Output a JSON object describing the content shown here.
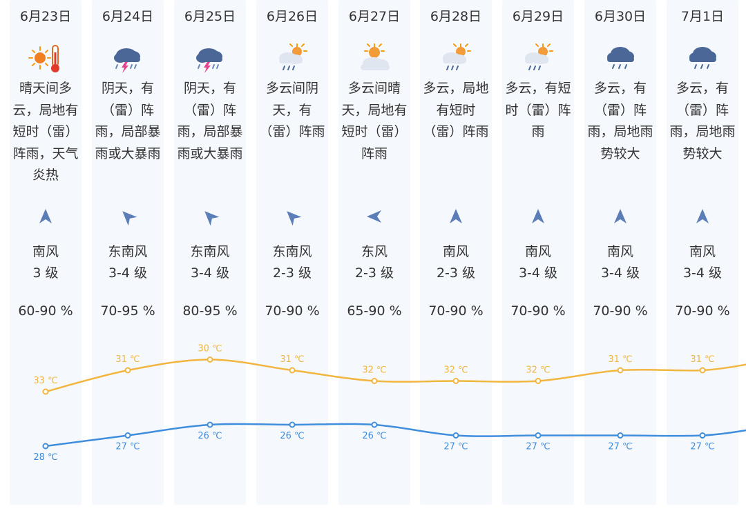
{
  "colors": {
    "high_line": "#f2b640",
    "low_line": "#3f8ddd",
    "wind_arrow": "#5b7db8",
    "column_bg": "#f5f8fc"
  },
  "days": [
    {
      "date": "6月23日",
      "icon": "sunny-hot-icon",
      "desc": [
        "晴天间多",
        "云，局地有",
        "短时（雷）",
        "阵雨，天气",
        "炎热"
      ],
      "wind_arrow": "wind-arrow-south-icon",
      "wind_dir": "南风",
      "wind_level": "3 级",
      "humidity": "60-90 %",
      "high": "33 ℃",
      "low": "28 ℃"
    },
    {
      "date": "6月24日",
      "icon": "thunderstorm-icon",
      "desc": [
        "阴天，有",
        "（雷）阵",
        "雨，局部暴",
        "雨或大暴雨"
      ],
      "wind_arrow": "wind-arrow-southeast-icon",
      "wind_dir": "东南风",
      "wind_level": "3-4 级",
      "humidity": "70-95 %",
      "high": "31 ℃",
      "low": "27 ℃"
    },
    {
      "date": "6月25日",
      "icon": "thunderstorm-icon",
      "desc": [
        "阴天，有",
        "（雷）阵",
        "雨，局部暴",
        "雨或大暴雨"
      ],
      "wind_arrow": "wind-arrow-southeast-icon",
      "wind_dir": "东南风",
      "wind_level": "3-4 级",
      "humidity": "80-95 %",
      "high": "30 ℃",
      "low": "26 ℃"
    },
    {
      "date": "6月26日",
      "icon": "partly-cloudy-rain-icon",
      "desc": [
        "多云间阴",
        "天，有",
        "（雷）阵雨"
      ],
      "wind_arrow": "wind-arrow-southeast-icon",
      "wind_dir": "东南风",
      "wind_level": "2-3 级",
      "humidity": "70-90 %",
      "high": "31 ℃",
      "low": "26 ℃"
    },
    {
      "date": "6月27日",
      "icon": "partly-cloudy-icon",
      "desc": [
        "多云间晴",
        "天，局地有",
        "短时（雷）",
        "阵雨"
      ],
      "wind_arrow": "wind-arrow-east-icon",
      "wind_dir": "东风",
      "wind_level": "2-3 级",
      "humidity": "65-90 %",
      "high": "32 ℃",
      "low": "26 ℃"
    },
    {
      "date": "6月28日",
      "icon": "partly-cloudy-rain-icon",
      "desc": [
        "多云，局地",
        "有短时",
        "（雷）阵雨"
      ],
      "wind_arrow": "wind-arrow-south-icon",
      "wind_dir": "南风",
      "wind_level": "2-3 级",
      "humidity": "70-90 %",
      "high": "32 ℃",
      "low": "27 ℃"
    },
    {
      "date": "6月29日",
      "icon": "partly-cloudy-rain-icon",
      "desc": [
        "多云，有短",
        "时（雷）阵",
        "雨"
      ],
      "wind_arrow": "wind-arrow-south-icon",
      "wind_dir": "南风",
      "wind_level": "3-4 级",
      "humidity": "70-90 %",
      "high": "32 ℃",
      "low": "27 ℃"
    },
    {
      "date": "6月30日",
      "icon": "cloudy-rain-icon",
      "desc": [
        "多云，有",
        "（雷）阵",
        "雨，局地雨",
        "势较大"
      ],
      "wind_arrow": "wind-arrow-south-icon",
      "wind_dir": "南风",
      "wind_level": "3-4 级",
      "humidity": "70-90 %",
      "high": "31 ℃",
      "low": "27 ℃"
    },
    {
      "date": "7月1日",
      "icon": "cloudy-rain-icon",
      "desc": [
        "多云，有",
        "（雷）阵",
        "雨，局地雨",
        "势较大"
      ],
      "wind_arrow": "wind-arrow-south-icon",
      "wind_dir": "南风",
      "wind_level": "3-4 级",
      "humidity": "70-90 %",
      "high": "31 ℃",
      "low": "27 ℃"
    }
  ],
  "chart_data": {
    "type": "line",
    "categories": [
      "6月23日",
      "6月24日",
      "6月25日",
      "6月26日",
      "6月27日",
      "6月28日",
      "6月29日",
      "6月30日",
      "7月1日"
    ],
    "series": [
      {
        "values": [
          33,
          31,
          30,
          31,
          32,
          32,
          32,
          31,
          31
        ]
      },
      {
        "values": [
          28,
          27,
          26,
          26,
          26,
          27,
          27,
          27,
          27
        ]
      }
    ],
    "unit": "℃",
    "title": "",
    "xlabel": "",
    "ylabel": ""
  }
}
